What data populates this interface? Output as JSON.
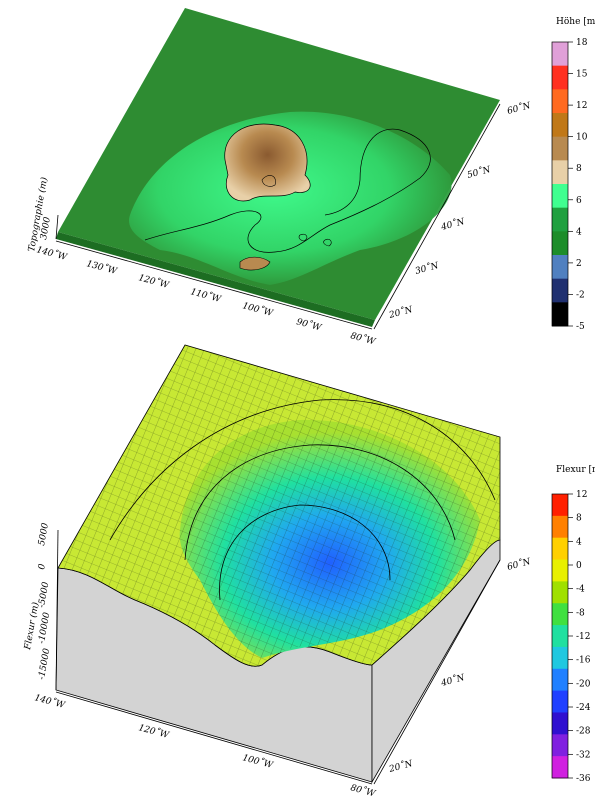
{
  "top_panel": {
    "z_axis_label": "Topographie (m)",
    "z_tick": "3000",
    "lon_labels": [
      "140˚W",
      "130˚W",
      "120˚W",
      "110˚W",
      "100˚W",
      "90˚W",
      "80˚W"
    ],
    "lat_labels": [
      "20˚N",
      "30˚N",
      "40˚N",
      "50˚N",
      "60˚N"
    ],
    "colorbar": {
      "title": "Höhe [m]",
      "ticks": [
        "18",
        "15",
        "12",
        "10",
        "8",
        "6",
        "4",
        "2",
        "-2",
        "-5"
      ],
      "colors": [
        "#e0a0d8",
        "#ff3020",
        "#ff6a20",
        "#c07818",
        "#b88a50",
        "#e8d0a8",
        "#40ff90",
        "#20a040",
        "#1d8d2a",
        "#5080c0",
        "#203070",
        "#000000"
      ]
    }
  },
  "bottom_panel": {
    "z_axis_label": "Flexur (m)",
    "z_ticks": [
      "5000",
      "0",
      "-5000",
      "-10000",
      "-15000"
    ],
    "lon_labels": [
      "140˚W",
      "120˚W",
      "100˚W",
      "80˚W"
    ],
    "lat_labels": [
      "20˚N",
      "40˚N",
      "60˚N"
    ],
    "colorbar": {
      "title": "Flexur [m]",
      "ticks": [
        "12",
        "8",
        "4",
        "0",
        "-4",
        "-8",
        "-12",
        "-16",
        "-20",
        "-24",
        "-28",
        "-32",
        "-36"
      ],
      "colors": [
        "#ff2000",
        "#ff8000",
        "#ffd000",
        "#e8f000",
        "#a0e000",
        "#40e040",
        "#20e0a0",
        "#20c8e0",
        "#2080ff",
        "#2040ff",
        "#3010d0",
        "#8020e0",
        "#d020e0"
      ]
    }
  },
  "palette": {
    "plain_green": "#2e8c32",
    "flexure_surface": "#c8e834",
    "box_side": "#d3d3d3"
  }
}
